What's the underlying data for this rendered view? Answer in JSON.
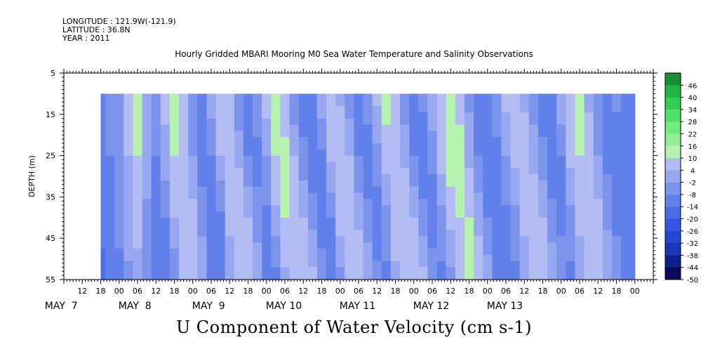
{
  "header": {
    "longitude": "LONGITUDE : 121.9W(-121.9)",
    "latitude": "LATITUDE : 36.8N",
    "year": "YEAR : 2011"
  },
  "chart_data": {
    "type": "heatmap",
    "title": "Hourly Gridded MBARI Mooring M0 Sea Water Temperature and Salinity Observations",
    "variable_label": "U Component of Water Velocity (cm s-1)",
    "ylabel": "DEPTH (m)",
    "ylim": [
      55,
      5
    ],
    "y_ticks": [
      5,
      15,
      25,
      35,
      45,
      55
    ],
    "data_depth_range": [
      10,
      55
    ],
    "x_hour_labels": [
      "12",
      "18",
      "00",
      "06",
      "12",
      "18",
      "00",
      "06",
      "12",
      "18",
      "00",
      "06",
      "12",
      "18",
      "00",
      "06",
      "12",
      "18",
      "00",
      "06",
      "12",
      "18",
      "00",
      "06",
      "12",
      "18",
      "00",
      "06",
      "12",
      "18",
      "00"
    ],
    "x_day_labels": [
      "MAY  7",
      "MAY  8",
      "MAY  9",
      "MAY 10",
      "MAY 11",
      "MAY 12",
      "MAY 13"
    ],
    "colorbar": {
      "labels": [
        "46",
        "40",
        "34",
        "28",
        "22",
        "16",
        "10",
        "4",
        "-2",
        "-8",
        "-14",
        "-20",
        "-26",
        "-32",
        "-38",
        "-44",
        "-50"
      ],
      "levels": [
        52,
        46,
        40,
        34,
        28,
        22,
        16,
        10,
        4,
        -2,
        -8,
        -14,
        -20,
        -26,
        -32,
        -38,
        -44,
        -50
      ]
    },
    "time_range_hours_from_may7_00": [
      18,
      192
    ],
    "profiles_hours": [
      18,
      21,
      24,
      27,
      30,
      33,
      36,
      39,
      42,
      45,
      48,
      51,
      54,
      57,
      60,
      63,
      66,
      69,
      72,
      75,
      78,
      81,
      84,
      87,
      90,
      93,
      96,
      99,
      102,
      105,
      108,
      111,
      114,
      117,
      120,
      123,
      126,
      129,
      132,
      135,
      138,
      141,
      144,
      147,
      150,
      153,
      156,
      159,
      162,
      165,
      168,
      171,
      174,
      177,
      180,
      183,
      186,
      189,
      192
    ],
    "profile_depths": [
      10,
      25,
      40,
      55
    ],
    "u_values": [
      [
        -8,
        -10,
        -12,
        -16
      ],
      [
        -6,
        -8,
        -10,
        -14
      ],
      [
        -2,
        -4,
        -6,
        -10
      ],
      [
        8,
        4,
        2,
        -4
      ],
      [
        12,
        10,
        6,
        2
      ],
      [
        4,
        2,
        -4,
        -2
      ],
      [
        -6,
        -8,
        -14,
        -12
      ],
      [
        6,
        2,
        -8,
        -14
      ],
      [
        14,
        10,
        4,
        -8
      ],
      [
        10,
        8,
        10,
        4
      ],
      [
        -4,
        -2,
        6,
        8
      ],
      [
        -10,
        -12,
        -4,
        2
      ],
      [
        2,
        -8,
        -14,
        -8
      ],
      [
        10,
        4,
        -10,
        -14
      ],
      [
        6,
        10,
        6,
        -2
      ],
      [
        -8,
        2,
        10,
        6
      ],
      [
        -12,
        -8,
        4,
        10
      ],
      [
        -4,
        -10,
        -6,
        4
      ],
      [
        8,
        -2,
        -10,
        -8
      ],
      [
        12,
        10,
        2,
        -10
      ],
      [
        4,
        12,
        10,
        2
      ],
      [
        -8,
        4,
        10,
        8
      ],
      [
        -14,
        -6,
        4,
        10
      ],
      [
        -10,
        -14,
        -4,
        6
      ],
      [
        4,
        -10,
        -12,
        -4
      ],
      [
        10,
        6,
        -8,
        -12
      ],
      [
        2,
        10,
        8,
        -4
      ],
      [
        -6,
        4,
        10,
        6
      ],
      [
        -10,
        -8,
        2,
        10
      ],
      [
        -4,
        -12,
        -6,
        4
      ],
      [
        6,
        -4,
        -12,
        -6
      ],
      [
        12,
        8,
        -4,
        -10
      ],
      [
        6,
        10,
        8,
        2
      ],
      [
        -6,
        2,
        10,
        8
      ],
      [
        -10,
        -8,
        4,
        10
      ],
      [
        -6,
        -12,
        -6,
        6
      ],
      [
        4,
        -6,
        -12,
        -4
      ],
      [
        10,
        8,
        -4,
        -10
      ],
      [
        16,
        14,
        6,
        -4
      ],
      [
        8,
        12,
        10,
        6
      ],
      [
        -4,
        2,
        10,
        10
      ],
      [
        -10,
        -8,
        2,
        8
      ],
      [
        -12,
        -14,
        -8,
        2
      ],
      [
        -4,
        -10,
        -12,
        -8
      ],
      [
        6,
        -2,
        -10,
        -12
      ],
      [
        8,
        6,
        -4,
        -10
      ],
      [
        2,
        8,
        6,
        -2
      ],
      [
        -6,
        2,
        8,
        8
      ],
      [
        -12,
        -6,
        4,
        10
      ],
      [
        -8,
        -12,
        -6,
        4
      ],
      [
        4,
        -8,
        -10,
        -4
      ],
      [
        10,
        6,
        -4,
        -10
      ],
      [
        12,
        10,
        6,
        -2
      ],
      [
        2,
        8,
        10,
        6
      ],
      [
        -8,
        -2,
        6,
        8
      ],
      [
        -12,
        -10,
        -4,
        4
      ],
      [
        -6,
        -12,
        -10,
        -4
      ],
      [
        -8,
        -10,
        -12,
        -10
      ],
      [
        -10,
        -12,
        -14,
        -12
      ]
    ]
  }
}
